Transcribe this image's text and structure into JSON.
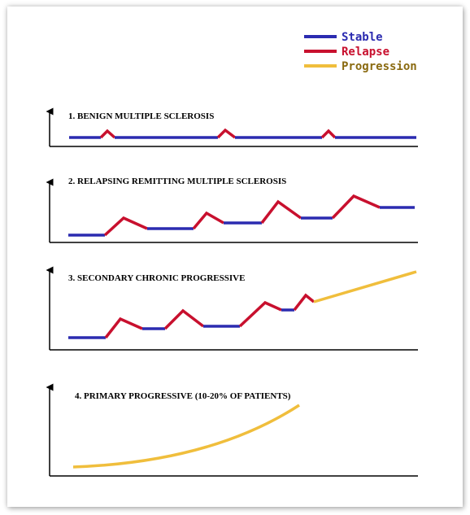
{
  "legend": [
    {
      "label": "Stable",
      "color": "#2b2bb0"
    },
    {
      "label": "Relapse",
      "color": "#c8102e"
    },
    {
      "label": "Progression",
      "color": "#f0be3c"
    }
  ],
  "colors": {
    "stable": "#2b2bb0",
    "relapse": "#c8102e",
    "progression": "#f0be3c",
    "axis": "#000000"
  },
  "panels": [
    {
      "title": "1. BENIGN MULTIPLE SCLEROSIS"
    },
    {
      "title": "2. RELAPSING REMITTING MULTIPLE SCLEROSIS"
    },
    {
      "title": "3. SECONDARY CHRONIC PROGRESSIVE"
    },
    {
      "title": "4. PRIMARY PROGRESSIVE  (10-20% OF PATIENTS)"
    }
  ]
}
